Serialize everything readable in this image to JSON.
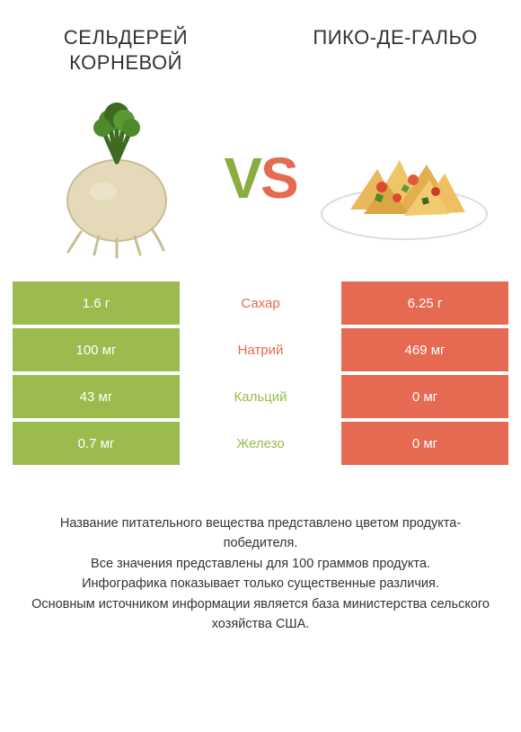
{
  "colors": {
    "left": "#9bbb4e",
    "right": "#e66a52",
    "left_dark": "#8aad3f",
    "right_dark": "#d95a42",
    "text": "#333333",
    "bg": "#ffffff"
  },
  "header": {
    "left_title": "СЕЛЬДЕРЕЙ КОРНЕВОЙ",
    "right_title": "ПИКО-ДЕ-ГАЛЬО",
    "vs_v": "V",
    "vs_s": "S"
  },
  "rows": [
    {
      "left": "1.6 г",
      "label": "Сахар",
      "right": "6.25 г",
      "winner": "right"
    },
    {
      "left": "100 мг",
      "label": "Натрий",
      "right": "469 мг",
      "winner": "right"
    },
    {
      "left": "43 мг",
      "label": "Кальций",
      "right": "0 мг",
      "winner": "left"
    },
    {
      "left": "0.7 мг",
      "label": "Железо",
      "right": "0 мг",
      "winner": "left"
    }
  ],
  "footnotes": [
    "Название питательного вещества представлено цветом продукта-победителя.",
    "Все значения представлены для 100 граммов продукта.",
    "Инфографика показывает только существенные различия.",
    "Основным источником информации является база министерства сельского хозяйства США."
  ]
}
